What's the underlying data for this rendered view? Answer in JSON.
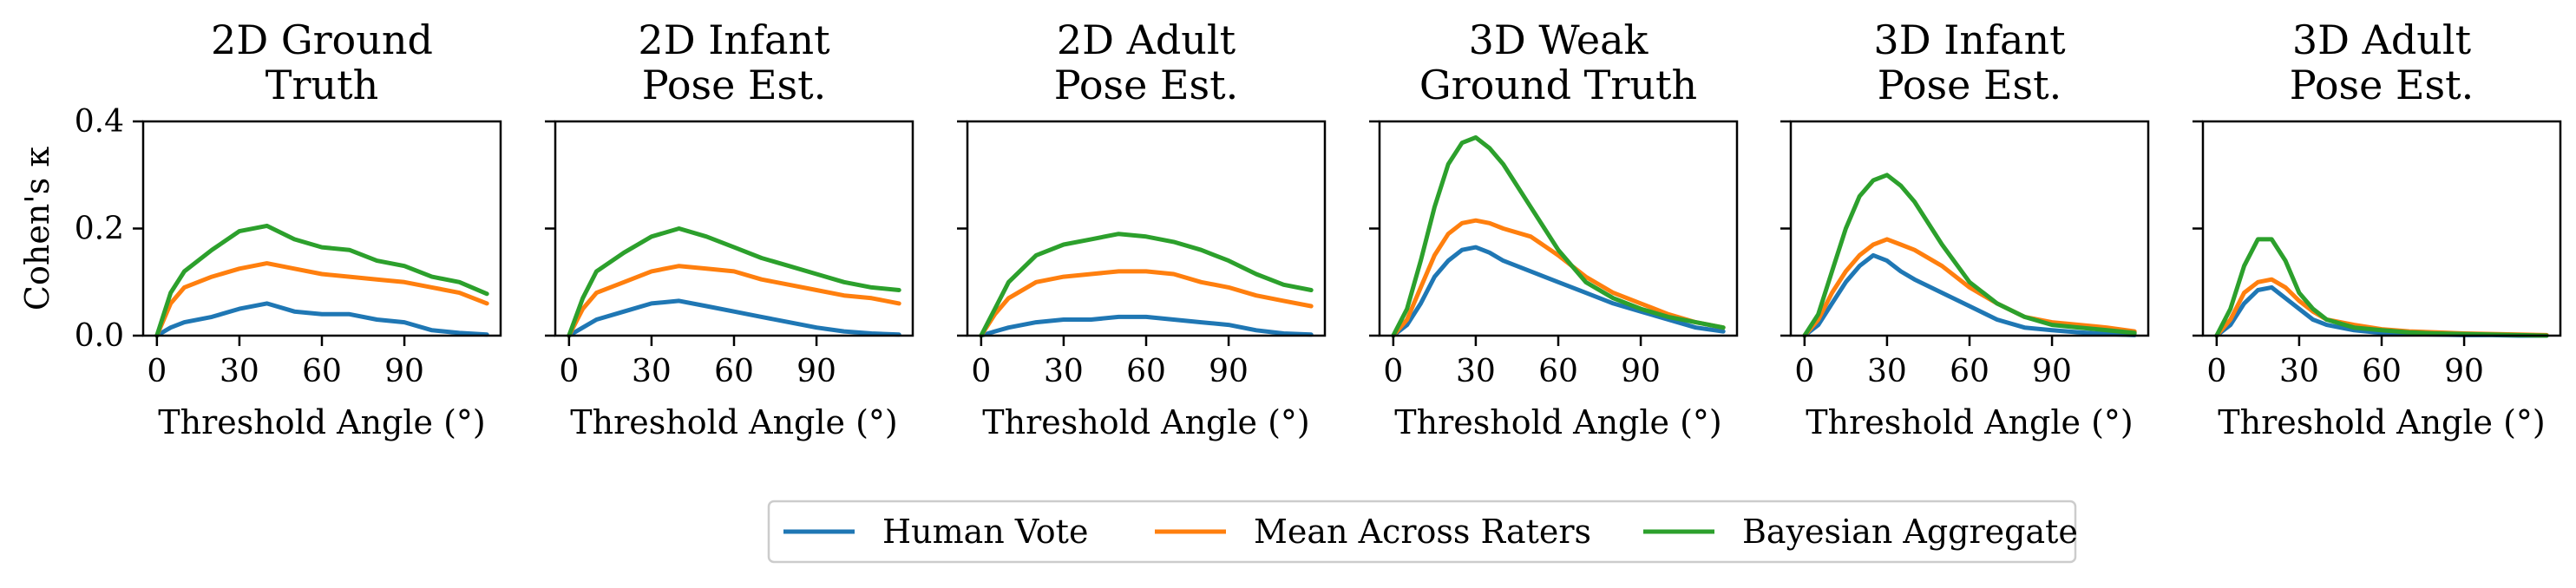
{
  "figure": {
    "ylabel": "Cohen's κ",
    "xlabel": "Threshold Angle (°)"
  },
  "legend": [
    {
      "name": "Human Vote",
      "color": "#1f77b4"
    },
    {
      "name": "Mean Across Raters",
      "color": "#ff7f0e"
    },
    {
      "name": "Bayesian Aggregate",
      "color": "#2ca02c"
    }
  ],
  "chart_data": [
    {
      "type": "line",
      "title": [
        "2D Ground",
        "Truth"
      ],
      "xlabel": "Threshold Angle (°)",
      "ylabel": "Cohen's κ",
      "xlim": [
        -5,
        125
      ],
      "ylim": [
        0,
        0.4
      ],
      "xticks": [
        0,
        30,
        60,
        90
      ],
      "yticks": [
        0.0,
        0.2,
        0.4
      ],
      "x": [
        0,
        5,
        10,
        20,
        30,
        40,
        50,
        60,
        70,
        80,
        90,
        100,
        110,
        120
      ],
      "series": [
        {
          "name": "Human Vote",
          "values": [
            0.0,
            0.015,
            0.025,
            0.035,
            0.05,
            0.06,
            0.045,
            0.04,
            0.04,
            0.03,
            0.025,
            0.01,
            0.005,
            0.002
          ]
        },
        {
          "name": "Mean Across Raters",
          "values": [
            0.0,
            0.06,
            0.09,
            0.11,
            0.125,
            0.135,
            0.125,
            0.115,
            0.11,
            0.105,
            0.1,
            0.09,
            0.08,
            0.06
          ]
        },
        {
          "name": "Bayesian Aggregate",
          "values": [
            0.0,
            0.08,
            0.12,
            0.16,
            0.195,
            0.205,
            0.18,
            0.165,
            0.16,
            0.14,
            0.13,
            0.11,
            0.1,
            0.078
          ]
        }
      ]
    },
    {
      "type": "line",
      "title": [
        "2D Infant",
        "Pose Est."
      ],
      "xlabel": "Threshold Angle (°)",
      "ylabel": "Cohen's κ",
      "xlim": [
        -5,
        125
      ],
      "ylim": [
        0,
        0.4
      ],
      "xticks": [
        0,
        30,
        60,
        90
      ],
      "yticks": [
        0.0,
        0.2,
        0.4
      ],
      "x": [
        0,
        5,
        10,
        20,
        30,
        40,
        50,
        60,
        70,
        80,
        90,
        100,
        110,
        120
      ],
      "series": [
        {
          "name": "Human Vote",
          "values": [
            0.0,
            0.015,
            0.03,
            0.045,
            0.06,
            0.065,
            0.055,
            0.045,
            0.035,
            0.025,
            0.015,
            0.008,
            0.004,
            0.002
          ]
        },
        {
          "name": "Mean Across Raters",
          "values": [
            0.0,
            0.05,
            0.08,
            0.1,
            0.12,
            0.13,
            0.125,
            0.12,
            0.105,
            0.095,
            0.085,
            0.075,
            0.07,
            0.06
          ]
        },
        {
          "name": "Bayesian Aggregate",
          "values": [
            0.0,
            0.07,
            0.12,
            0.155,
            0.185,
            0.2,
            0.185,
            0.165,
            0.145,
            0.13,
            0.115,
            0.1,
            0.09,
            0.085
          ]
        }
      ]
    },
    {
      "type": "line",
      "title": [
        "2D Adult",
        "Pose Est."
      ],
      "xlabel": "Threshold Angle (°)",
      "ylabel": "Cohen's κ",
      "xlim": [
        -5,
        125
      ],
      "ylim": [
        0,
        0.4
      ],
      "xticks": [
        0,
        30,
        60,
        90
      ],
      "yticks": [
        0.0,
        0.2,
        0.4
      ],
      "x": [
        0,
        5,
        10,
        20,
        30,
        40,
        50,
        60,
        70,
        80,
        90,
        100,
        110,
        120
      ],
      "series": [
        {
          "name": "Human Vote",
          "values": [
            0.0,
            0.008,
            0.015,
            0.025,
            0.03,
            0.03,
            0.035,
            0.035,
            0.03,
            0.025,
            0.02,
            0.01,
            0.004,
            0.002
          ]
        },
        {
          "name": "Mean Across Raters",
          "values": [
            0.0,
            0.04,
            0.07,
            0.1,
            0.11,
            0.115,
            0.12,
            0.12,
            0.115,
            0.1,
            0.09,
            0.075,
            0.065,
            0.055
          ]
        },
        {
          "name": "Bayesian Aggregate",
          "values": [
            0.0,
            0.05,
            0.1,
            0.15,
            0.17,
            0.18,
            0.19,
            0.185,
            0.175,
            0.16,
            0.14,
            0.115,
            0.095,
            0.085
          ]
        }
      ]
    },
    {
      "type": "line",
      "title": [
        "3D Weak",
        "Ground Truth"
      ],
      "xlabel": "Threshold Angle (°)",
      "ylabel": "Cohen's κ",
      "xlim": [
        -5,
        125
      ],
      "ylim": [
        0,
        0.4
      ],
      "xticks": [
        0,
        30,
        60,
        90
      ],
      "yticks": [
        0.0,
        0.2,
        0.4
      ],
      "x": [
        0,
        5,
        10,
        15,
        20,
        25,
        30,
        35,
        40,
        50,
        60,
        70,
        80,
        90,
        100,
        110,
        120
      ],
      "series": [
        {
          "name": "Human Vote",
          "values": [
            0.0,
            0.02,
            0.06,
            0.11,
            0.14,
            0.16,
            0.165,
            0.155,
            0.14,
            0.12,
            0.1,
            0.08,
            0.06,
            0.045,
            0.03,
            0.015,
            0.008
          ]
        },
        {
          "name": "Mean Across Raters",
          "values": [
            0.0,
            0.03,
            0.09,
            0.15,
            0.19,
            0.21,
            0.215,
            0.21,
            0.2,
            0.185,
            0.15,
            0.11,
            0.08,
            0.06,
            0.04,
            0.025,
            0.015
          ]
        },
        {
          "name": "Bayesian Aggregate",
          "values": [
            0.0,
            0.05,
            0.14,
            0.24,
            0.32,
            0.36,
            0.37,
            0.35,
            0.32,
            0.24,
            0.16,
            0.1,
            0.07,
            0.05,
            0.035,
            0.025,
            0.015
          ]
        }
      ]
    },
    {
      "type": "line",
      "title": [
        "3D Infant",
        "Pose Est."
      ],
      "xlabel": "Threshold Angle (°)",
      "ylabel": "Cohen's κ",
      "xlim": [
        -5,
        125
      ],
      "ylim": [
        0,
        0.4
      ],
      "xticks": [
        0,
        30,
        60,
        90
      ],
      "yticks": [
        0.0,
        0.2,
        0.4
      ],
      "x": [
        0,
        5,
        10,
        15,
        20,
        25,
        30,
        35,
        40,
        50,
        60,
        70,
        80,
        90,
        100,
        110,
        120
      ],
      "series": [
        {
          "name": "Human Vote",
          "values": [
            0.0,
            0.02,
            0.06,
            0.1,
            0.13,
            0.15,
            0.14,
            0.12,
            0.105,
            0.08,
            0.055,
            0.03,
            0.015,
            0.01,
            0.006,
            0.003,
            0.001
          ]
        },
        {
          "name": "Mean Across Raters",
          "values": [
            0.0,
            0.03,
            0.08,
            0.12,
            0.15,
            0.17,
            0.18,
            0.17,
            0.16,
            0.13,
            0.09,
            0.06,
            0.035,
            0.025,
            0.02,
            0.015,
            0.008
          ]
        },
        {
          "name": "Bayesian Aggregate",
          "values": [
            0.0,
            0.04,
            0.12,
            0.2,
            0.26,
            0.29,
            0.3,
            0.28,
            0.25,
            0.17,
            0.1,
            0.06,
            0.035,
            0.02,
            0.015,
            0.01,
            0.005
          ]
        }
      ]
    },
    {
      "type": "line",
      "title": [
        "3D Adult",
        "Pose Est."
      ],
      "xlabel": "Threshold Angle (°)",
      "ylabel": "Cohen's κ",
      "xlim": [
        -5,
        125
      ],
      "ylim": [
        0,
        0.4
      ],
      "xticks": [
        0,
        30,
        60,
        90
      ],
      "yticks": [
        0.0,
        0.2,
        0.4
      ],
      "x": [
        0,
        5,
        10,
        15,
        20,
        25,
        30,
        35,
        40,
        50,
        60,
        70,
        80,
        90,
        100,
        110,
        120
      ],
      "series": [
        {
          "name": "Human Vote",
          "values": [
            0.0,
            0.02,
            0.06,
            0.085,
            0.09,
            0.07,
            0.05,
            0.03,
            0.02,
            0.01,
            0.005,
            0.003,
            0.002,
            0.001,
            0.001,
            0.0,
            0.0
          ]
        },
        {
          "name": "Mean Across Raters",
          "values": [
            0.0,
            0.03,
            0.08,
            0.1,
            0.105,
            0.09,
            0.065,
            0.045,
            0.03,
            0.02,
            0.012,
            0.008,
            0.006,
            0.004,
            0.003,
            0.002,
            0.001
          ]
        },
        {
          "name": "Bayesian Aggregate",
          "values": [
            0.0,
            0.05,
            0.13,
            0.18,
            0.18,
            0.14,
            0.08,
            0.05,
            0.03,
            0.015,
            0.01,
            0.006,
            0.004,
            0.003,
            0.002,
            0.001,
            0.0
          ]
        }
      ]
    }
  ]
}
